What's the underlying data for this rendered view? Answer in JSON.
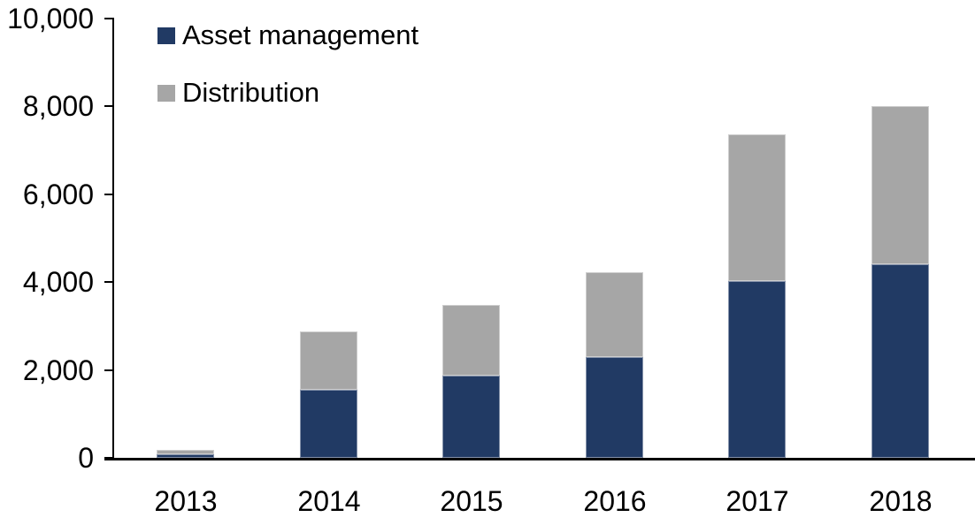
{
  "chart_data": {
    "type": "bar",
    "stacked": true,
    "title": "",
    "xlabel": "",
    "ylabel": "",
    "categories": [
      "2013",
      "2014",
      "2015",
      "2016",
      "2017",
      "2018"
    ],
    "series": [
      {
        "name": "Asset management",
        "color": "#213A64",
        "values": [
          80,
          1540,
          1880,
          2290,
          4030,
          4400
        ]
      },
      {
        "name": "Distribution",
        "color": "#A6A6A6",
        "values": [
          100,
          1320,
          1610,
          1940,
          3350,
          3600
        ]
      }
    ],
    "ylim": [
      0,
      10000
    ],
    "ytick_values": [
      0,
      2000,
      4000,
      6000,
      8000,
      10000
    ],
    "ytick_labels": [
      "0",
      "2,000",
      "4,000",
      "6,000",
      "8,000",
      "10,000"
    ],
    "grid": false,
    "legend_position": "inside-top-left",
    "axis_color": "#000000",
    "background_color": "#FFFFFF"
  }
}
